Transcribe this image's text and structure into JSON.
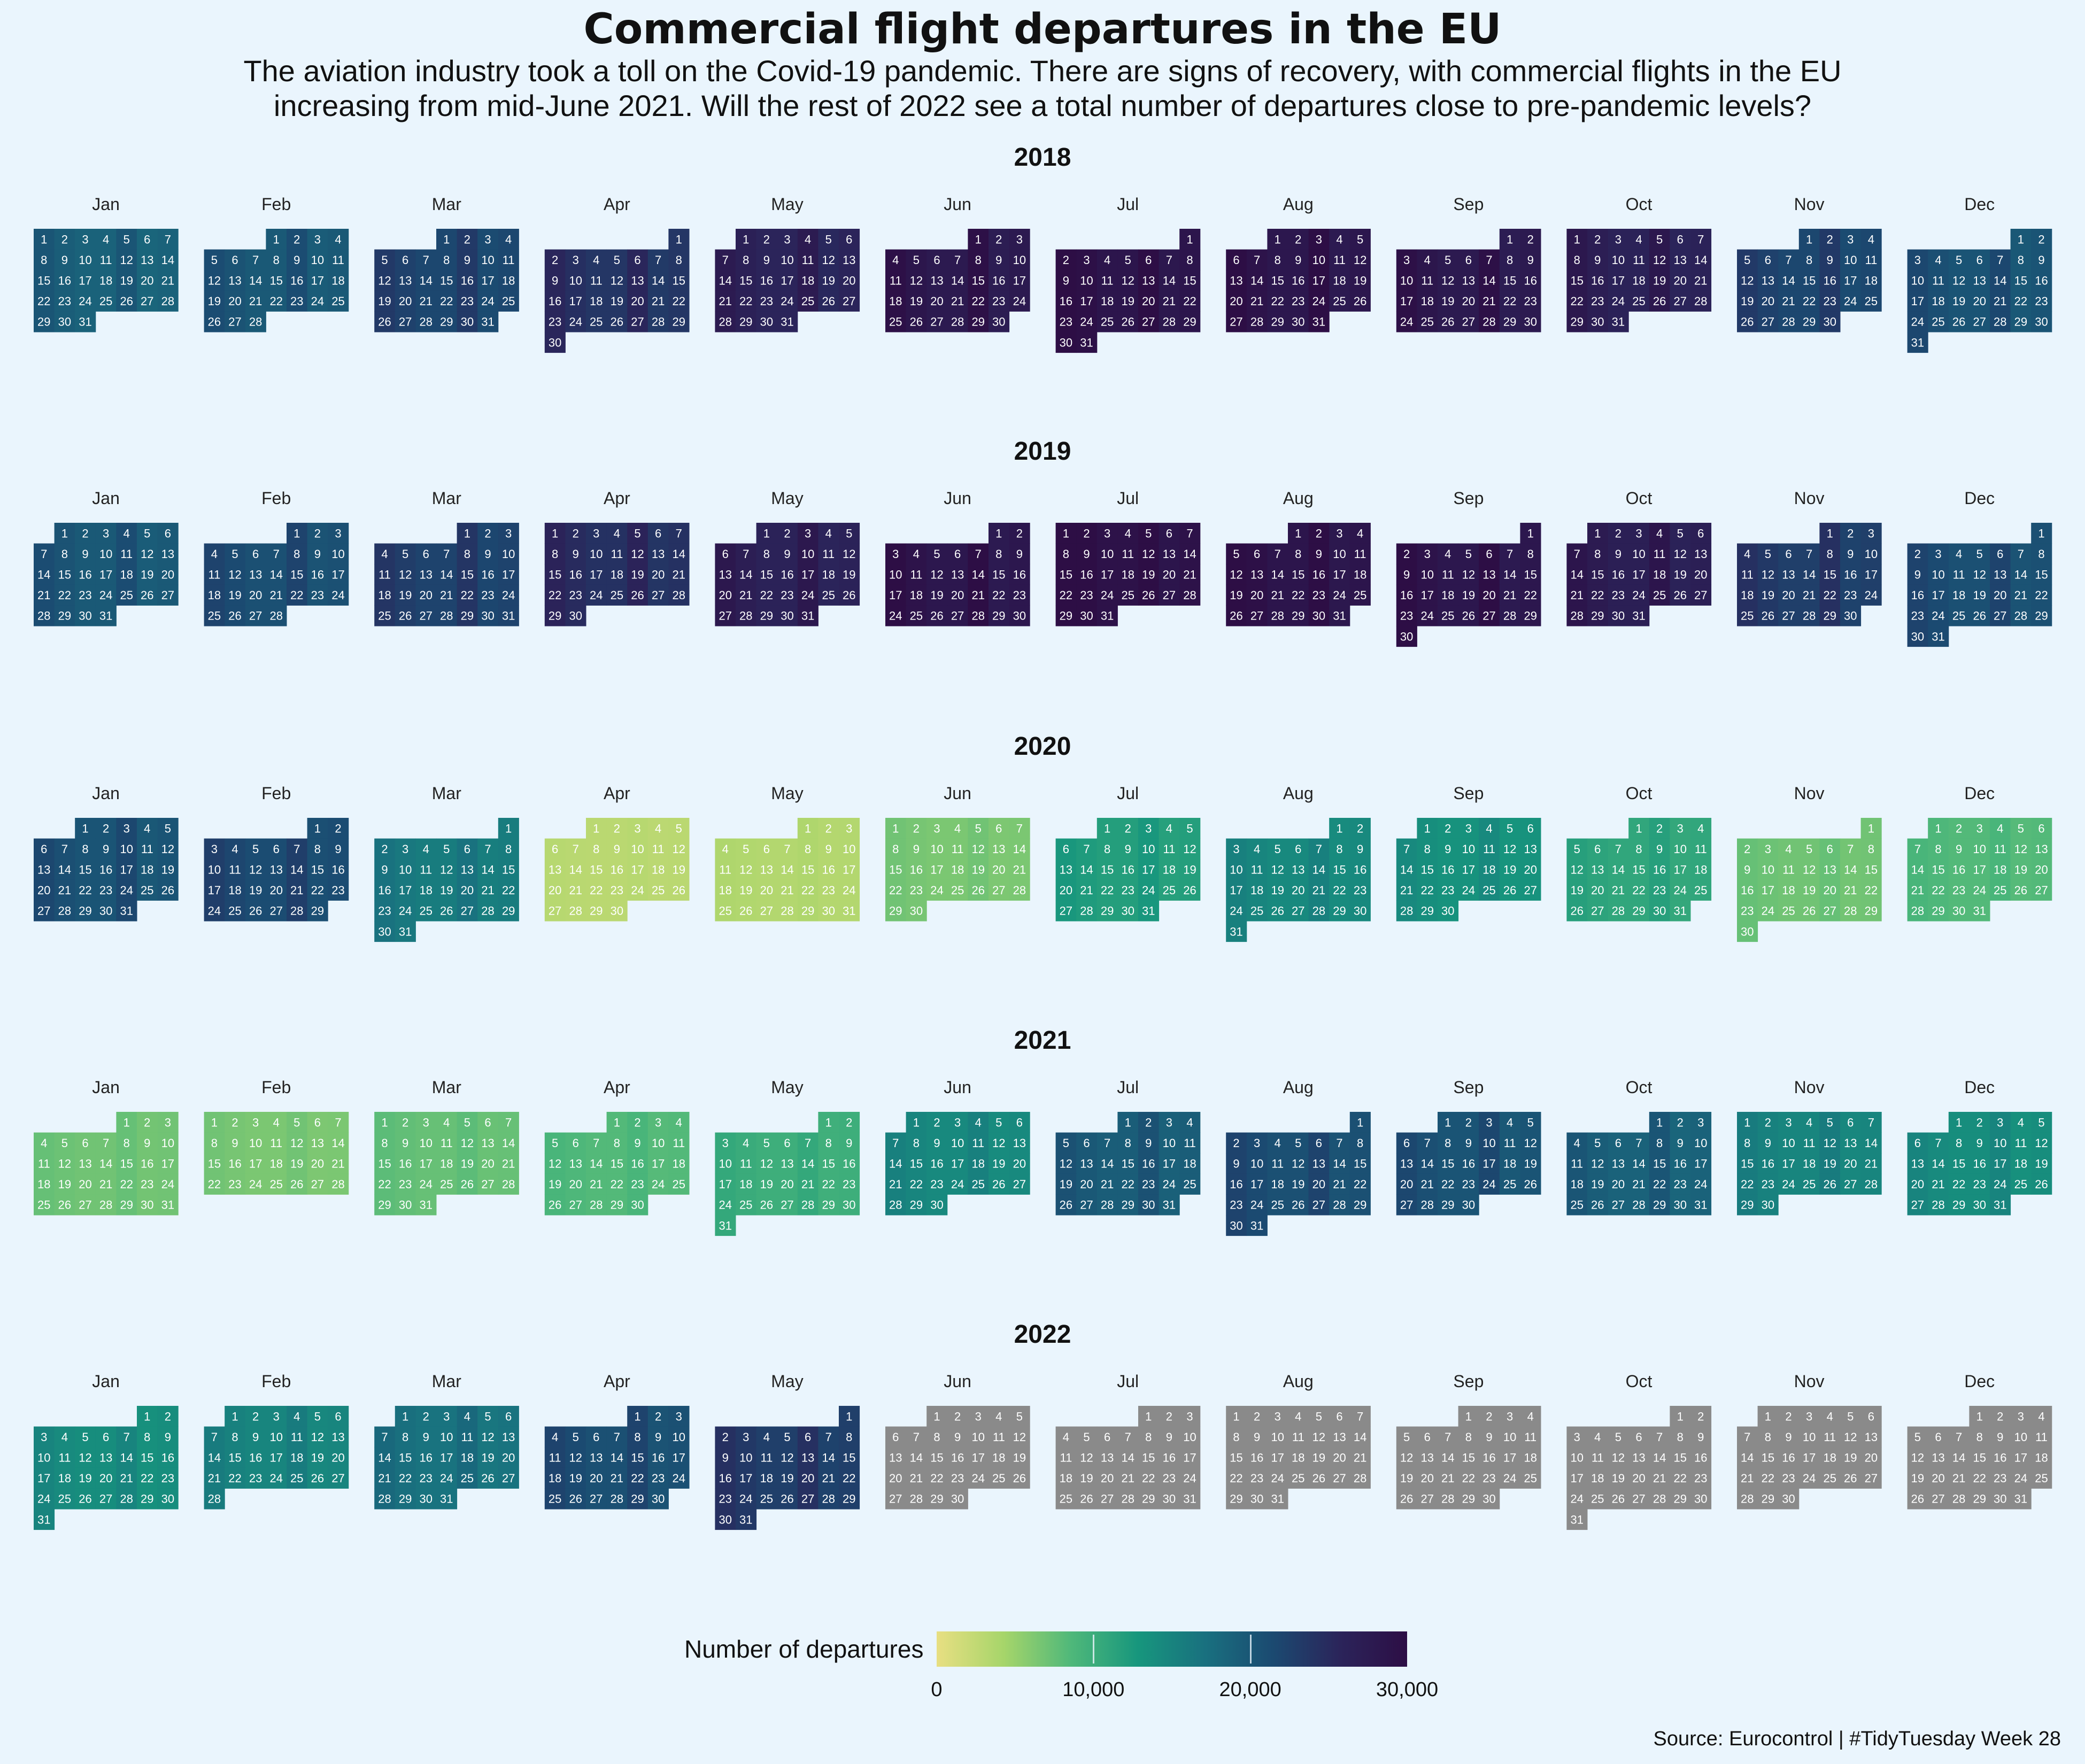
{
  "title": "Commercial flight departures in the EU",
  "subtitle_line1": "The aviation industry took a toll on the Covid-19 pandemic. There are signs of recovery, with commercial flights in the EU",
  "subtitle_line2": "increasing from mid-June 2021. Will the rest of 2022 see a total number of departures close to pre-pandemic levels?",
  "source": "Source: Eurocontrol | #TidyTuesday Week 28",
  "chart_data": {
    "type": "heatmap",
    "title": "Commercial flight departures in the EU",
    "legend": {
      "title": "Number of departures",
      "ticks": [
        0,
        10000,
        20000,
        30000
      ],
      "tick_labels": [
        "0",
        "10,000",
        "20,000",
        "30,000"
      ],
      "range": [
        0,
        30000
      ]
    },
    "week_start": "Monday",
    "month_labels": [
      "Jan",
      "Feb",
      "Mar",
      "Apr",
      "May",
      "Jun",
      "Jul",
      "Aug",
      "Sep",
      "Oct",
      "Nov",
      "Dec"
    ],
    "colors": {
      "missing": "#8a8a8a",
      "low": "#e8df82",
      "high": "#2d0e45"
    },
    "years": [
      {
        "year": 2018,
        "monthly_departures": [
          19000,
          20000,
          22000,
          24000,
          26000,
          28000,
          29000,
          28500,
          28000,
          26500,
          22000,
          20500
        ]
      },
      {
        "year": 2019,
        "monthly_departures": [
          20000,
          21000,
          22500,
          24500,
          26500,
          28500,
          29500,
          29000,
          28500,
          27000,
          23000,
          21000
        ]
      },
      {
        "year": 2020,
        "monthly_departures": [
          20500,
          21500,
          16000,
          3000,
          3500,
          6500,
          12000,
          14500,
          13500,
          11000,
          7000,
          8500
        ]
      },
      {
        "year": 2021,
        "monthly_departures": [
          7000,
          6500,
          7500,
          8500,
          10000,
          14500,
          19500,
          21000,
          20500,
          19000,
          15000,
          14000
        ]
      },
      {
        "year": 2022,
        "monthly_departures": [
          14000,
          15000,
          17000,
          21000,
          23000,
          null,
          null,
          null,
          null,
          null,
          null,
          null
        ]
      }
    ]
  }
}
